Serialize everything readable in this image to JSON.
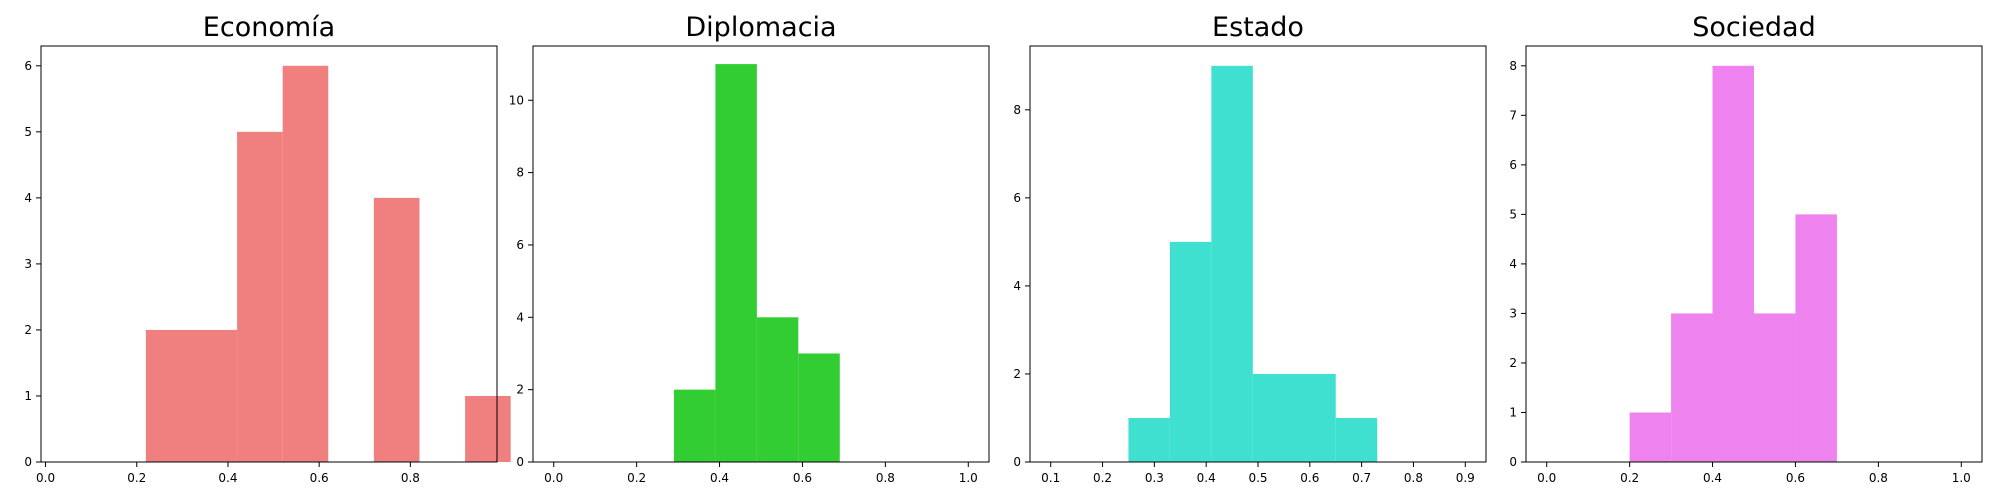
{
  "chart_data": [
    {
      "type": "bar",
      "title": "Economía",
      "color": "#f08080",
      "xlabel": "",
      "ylabel": "",
      "xlim": [
        -0.01,
        0.99
      ],
      "ylim": [
        0,
        6.3
      ],
      "xticks": [
        0.0,
        0.2,
        0.4,
        0.6,
        0.8
      ],
      "xtick_labels": [
        "0.0",
        "0.2",
        "0.4",
        "0.6",
        "0.8"
      ],
      "yticks": [
        0,
        1,
        2,
        3,
        4,
        5,
        6
      ],
      "ytick_labels": [
        "0",
        "1",
        "2",
        "3",
        "4",
        "5",
        "6"
      ],
      "bins": [
        {
          "x0": 0.22,
          "x1": 0.42,
          "count": 2
        },
        {
          "x0": 0.42,
          "x1": 0.52,
          "count": 5
        },
        {
          "x0": 0.52,
          "x1": 0.62,
          "count": 6
        },
        {
          "x0": 0.72,
          "x1": 0.82,
          "count": 4
        },
        {
          "x0": 0.92,
          "x1": 1.02,
          "count": 1
        }
      ],
      "grid": false,
      "legend": "none"
    },
    {
      "type": "bar",
      "title": "Diplomacia",
      "color": "#32cd32",
      "xlabel": "",
      "ylabel": "",
      "xlim": [
        -0.05,
        1.05
      ],
      "ylim": [
        0,
        11.5
      ],
      "xticks": [
        0.0,
        0.2,
        0.4,
        0.6,
        0.8,
        1.0
      ],
      "xtick_labels": [
        "0.0",
        "0.2",
        "0.4",
        "0.6",
        "0.8",
        "1.0"
      ],
      "yticks": [
        0,
        2,
        4,
        6,
        8,
        10
      ],
      "ytick_labels": [
        "0",
        "2",
        "4",
        "6",
        "8",
        "10"
      ],
      "bins": [
        {
          "x0": 0.29,
          "x1": 0.39,
          "count": 2
        },
        {
          "x0": 0.39,
          "x1": 0.49,
          "count": 11
        },
        {
          "x0": 0.49,
          "x1": 0.59,
          "count": 4
        },
        {
          "x0": 0.59,
          "x1": 0.69,
          "count": 3
        }
      ],
      "grid": false,
      "legend": "none"
    },
    {
      "type": "bar",
      "title": "Estado",
      "color": "#40e0d0",
      "xlabel": "",
      "ylabel": "",
      "xlim": [
        0.06,
        0.94
      ],
      "ylim": [
        0,
        9.45
      ],
      "xticks": [
        0.1,
        0.2,
        0.3,
        0.4,
        0.5,
        0.6,
        0.7,
        0.8,
        0.9
      ],
      "xtick_labels": [
        "0.1",
        "0.2",
        "0.3",
        "0.4",
        "0.5",
        "0.6",
        "0.7",
        "0.8",
        "0.9"
      ],
      "yticks": [
        0,
        2,
        4,
        6,
        8
      ],
      "ytick_labels": [
        "0",
        "2",
        "4",
        "6",
        "8"
      ],
      "bins": [
        {
          "x0": 0.25,
          "x1": 0.33,
          "count": 1
        },
        {
          "x0": 0.33,
          "x1": 0.41,
          "count": 5
        },
        {
          "x0": 0.41,
          "x1": 0.49,
          "count": 9
        },
        {
          "x0": 0.49,
          "x1": 0.65,
          "count": 2
        },
        {
          "x0": 0.65,
          "x1": 0.73,
          "count": 1
        }
      ],
      "grid": false,
      "legend": "none"
    },
    {
      "type": "bar",
      "title": "Sociedad",
      "color": "#ee82ee",
      "xlabel": "",
      "ylabel": "",
      "xlim": [
        -0.05,
        1.05
      ],
      "ylim": [
        0,
        8.4
      ],
      "xticks": [
        0.0,
        0.2,
        0.4,
        0.6,
        0.8,
        1.0
      ],
      "xtick_labels": [
        "0.0",
        "0.2",
        "0.4",
        "0.6",
        "0.8",
        "1.0"
      ],
      "yticks": [
        0,
        1,
        2,
        3,
        4,
        5,
        6,
        7,
        8
      ],
      "ytick_labels": [
        "0",
        "1",
        "2",
        "3",
        "4",
        "5",
        "6",
        "7",
        "8"
      ],
      "bins": [
        {
          "x0": 0.2,
          "x1": 0.3,
          "count": 1
        },
        {
          "x0": 0.3,
          "x1": 0.4,
          "count": 3
        },
        {
          "x0": 0.4,
          "x1": 0.5,
          "count": 8
        },
        {
          "x0": 0.5,
          "x1": 0.6,
          "count": 3
        },
        {
          "x0": 0.6,
          "x1": 0.7,
          "count": 5
        }
      ],
      "grid": false,
      "legend": "none"
    }
  ]
}
